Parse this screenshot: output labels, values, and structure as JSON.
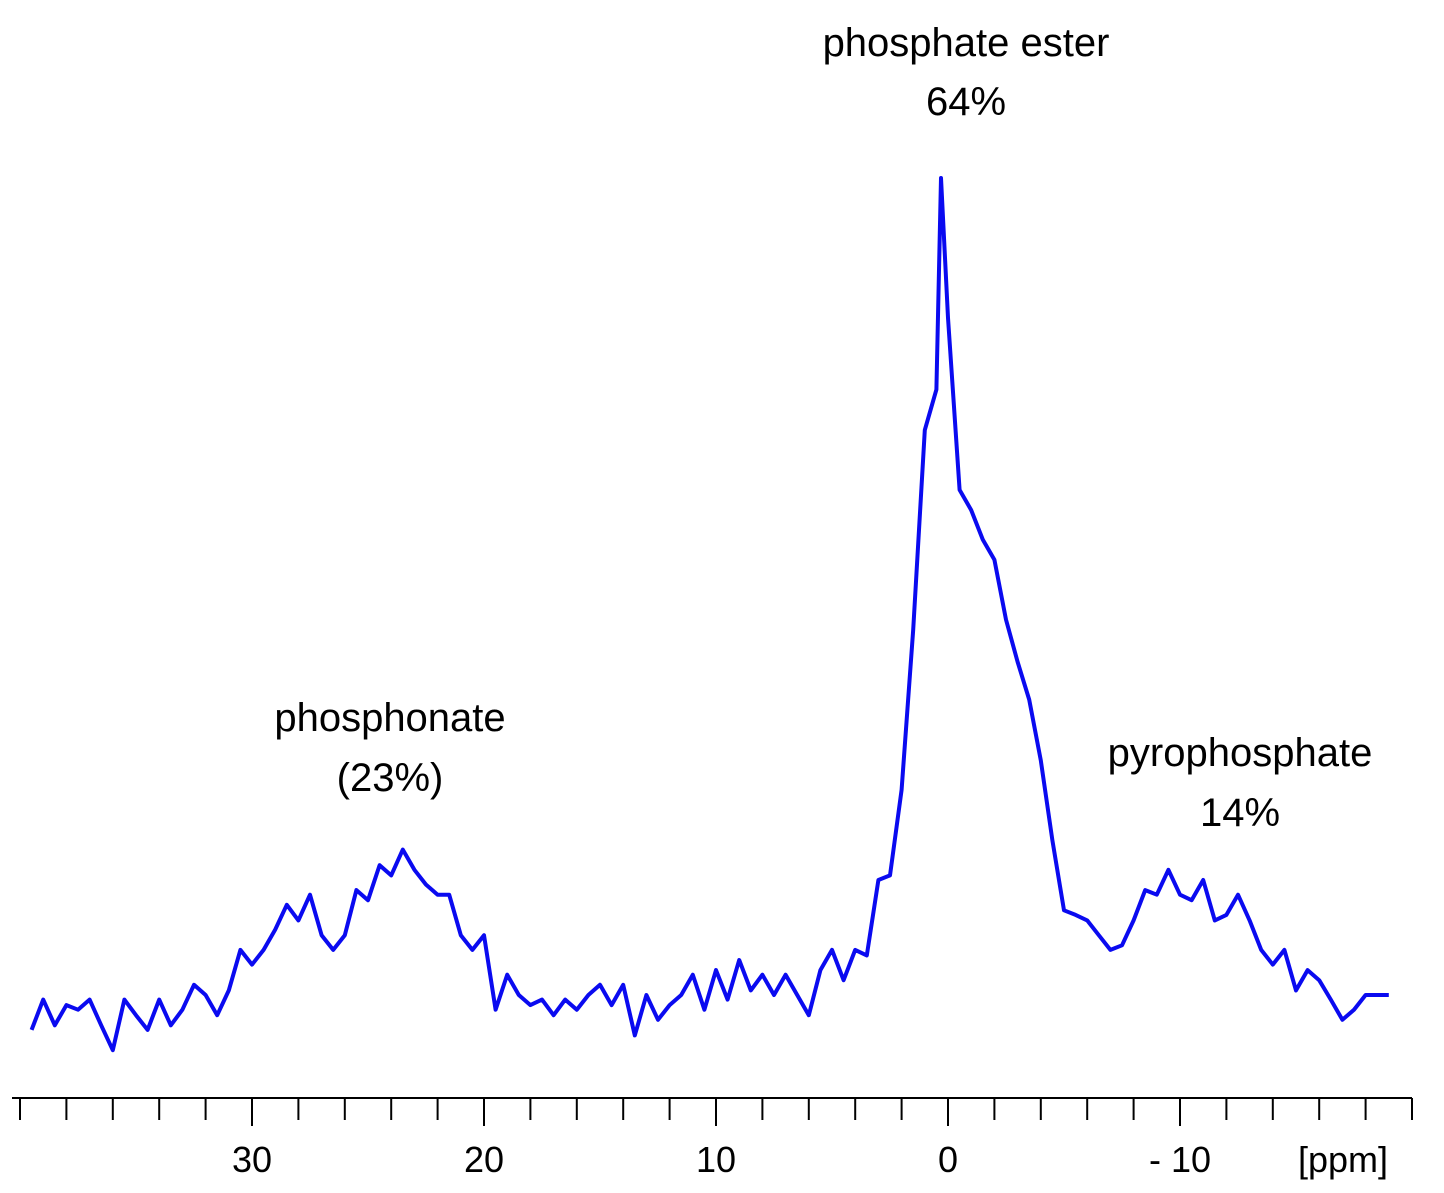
{
  "chart_data": {
    "type": "line",
    "annotations": [
      "phosphate ester",
      "64%",
      "phosphonate",
      "(23%)",
      "pyrophosphate",
      "14%"
    ],
    "xlabel": "[ppm]",
    "xlim": [
      40,
      -20
    ],
    "ylim": [
      0,
      100
    ],
    "xticks": [
      30,
      20,
      10,
      0,
      {
        "value": -10,
        "label": "- 10"
      }
    ],
    "xminor_ticks": [
      40,
      38,
      36,
      34,
      32,
      30,
      28,
      26,
      24,
      22,
      20,
      18,
      16,
      14,
      12,
      10,
      8,
      6,
      4,
      2,
      0,
      -2,
      -4,
      -6,
      -8,
      -10,
      -12,
      -14,
      -16,
      -18,
      -20
    ],
    "series": [
      {
        "color": "#0a0af0",
        "x": [
          39.5,
          39,
          38.5,
          38,
          37.5,
          37,
          36.5,
          36,
          35.5,
          35,
          34.5,
          34,
          33.5,
          33,
          32.5,
          32,
          31.5,
          31,
          30.5,
          30,
          29.5,
          29,
          28.5,
          28,
          27.5,
          27,
          26.5,
          26,
          25.5,
          25,
          24.5,
          24,
          23.5,
          23,
          22.5,
          22,
          21.5,
          21,
          20.5,
          20,
          19.5,
          19,
          18.5,
          18,
          17.5,
          17,
          16.5,
          16,
          15.5,
          15,
          14.5,
          14,
          13.5,
          13,
          12.5,
          12,
          11.5,
          11,
          10.5,
          10,
          9.5,
          9,
          8.5,
          8,
          7.5,
          7,
          6.5,
          6,
          5.5,
          5,
          4.5,
          4,
          3.5,
          3,
          2.5,
          2,
          1.5,
          1,
          0.5,
          0.3,
          0,
          -0.5,
          -1,
          -1.5,
          -2,
          -2.5,
          -3,
          -3.5,
          -4,
          -4.5,
          -5,
          -5.5,
          -6,
          -6.5,
          -7,
          -7.5,
          -8,
          -8.5,
          -9,
          -9.5,
          -10,
          -10.5,
          -11,
          -11.5,
          -12,
          -12.5,
          -13,
          -13.5,
          -14,
          -14.5,
          -15,
          -15.5,
          -16,
          -16.5,
          -17,
          -17.5,
          -18,
          -18.5,
          -19
        ],
        "values": [
          7.4,
          10.7,
          7.9,
          10.1,
          9.6,
          10.7,
          7.9,
          5.2,
          10.7,
          9.0,
          7.4,
          10.7,
          7.9,
          9.6,
          12.3,
          11.2,
          9.0,
          11.7,
          16.1,
          14.5,
          16.1,
          18.3,
          21.0,
          19.3,
          22.1,
          17.7,
          16.1,
          17.7,
          22.6,
          21.5,
          25.3,
          24.2,
          27.0,
          24.8,
          23.2,
          22.1,
          22.1,
          17.7,
          16.1,
          17.7,
          9.6,
          13.4,
          11.2,
          10.1,
          10.7,
          9.0,
          10.7,
          9.6,
          11.2,
          12.3,
          10.1,
          12.3,
          6.8,
          11.2,
          8.5,
          10.1,
          11.2,
          13.4,
          9.6,
          13.9,
          10.7,
          15.0,
          11.7,
          13.4,
          11.2,
          13.4,
          11.2,
          9.0,
          13.9,
          16.1,
          12.8,
          16.1,
          15.5,
          23.7,
          24.2,
          33.5,
          50.9,
          72.6,
          77.0,
          100,
          84.8,
          66.1,
          63.9,
          60.7,
          58.5,
          52.0,
          47.4,
          43.3,
          36.7,
          28.0,
          20.4,
          19.9,
          19.3,
          17.7,
          16.1,
          16.6,
          19.3,
          22.6,
          22.1,
          24.8,
          22.1,
          21.5,
          23.7,
          19.3,
          19.9,
          22.1,
          19.3,
          16.1,
          14.5,
          16.1,
          11.7,
          13.9,
          12.8,
          10.7,
          8.5,
          9.6,
          11.2,
          11.2,
          11.2
        ]
      }
    ]
  }
}
